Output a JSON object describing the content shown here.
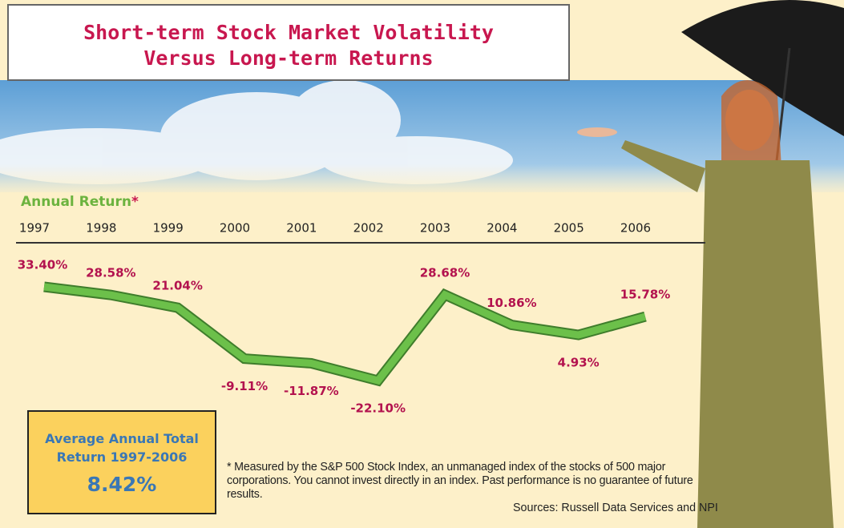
{
  "chart_data": {
    "type": "line",
    "title_lines": [
      "Short-term Stock Market Volatility",
      "Versus Long-term Returns"
    ],
    "y_label": "Annual Return",
    "y_label_note": "*",
    "categories": [
      "1997",
      "1998",
      "1999",
      "2000",
      "2001",
      "2002",
      "2003",
      "2004",
      "2005",
      "2006"
    ],
    "values": [
      33.4,
      28.58,
      21.04,
      -9.11,
      -11.87,
      -22.1,
      28.68,
      10.86,
      4.93,
      15.78
    ],
    "value_labels": [
      "33.40%",
      "28.58%",
      "21.04%",
      "-9.11%",
      "-11.87%",
      "-22.10%",
      "28.68%",
      "10.86%",
      "4.93%",
      "15.78%"
    ],
    "color": "#6cc04a",
    "label_color": "#b3124e",
    "box": {
      "title": "Average Annual Total Return 1997-2006",
      "value": "8.42%"
    },
    "footnote": "* Measured by the S&P 500 Stock Index, an unmanaged index of the stocks of 500 major corporations. You cannot invest directly in an index. Past performance is no guarantee of future results.",
    "sources": "Sources: Russell Data Services and NPI"
  }
}
